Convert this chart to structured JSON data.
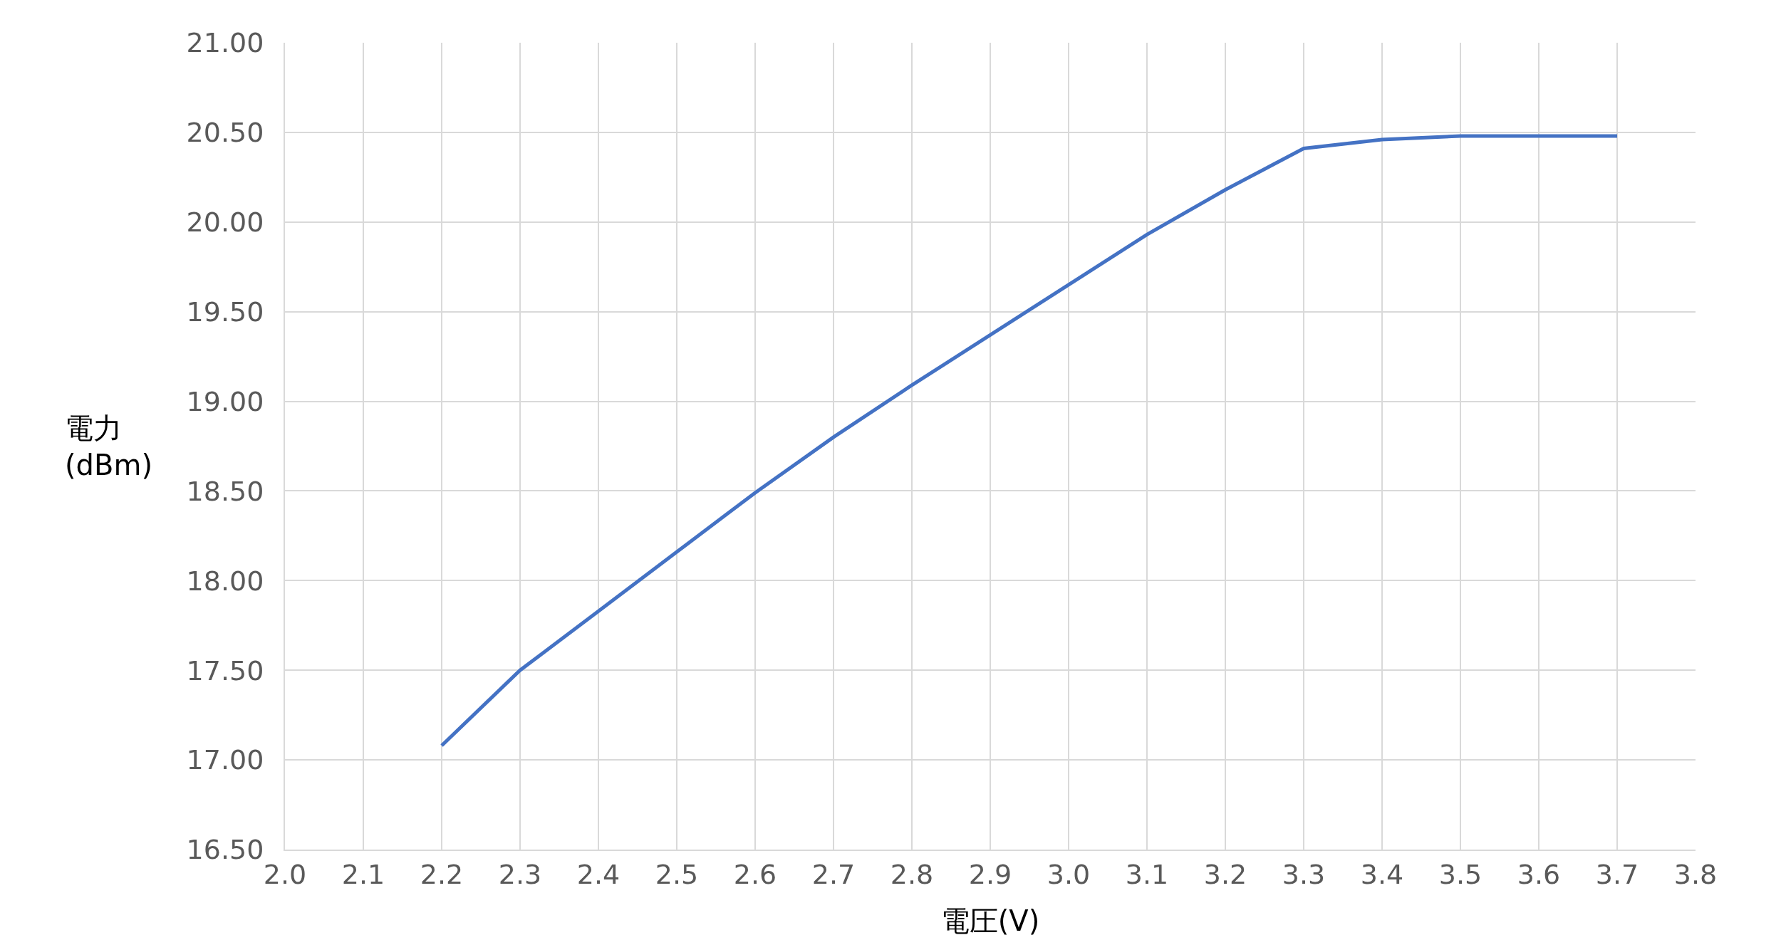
{
  "chart_data": {
    "type": "line",
    "xlabel": "電圧(V)",
    "ylabel": "電力\n(dBm)",
    "x": [
      2.2,
      2.3,
      2.4,
      2.5,
      2.6,
      2.7,
      2.8,
      2.9,
      3.0,
      3.1,
      3.2,
      3.3,
      3.4,
      3.5,
      3.6,
      3.7
    ],
    "series": [
      {
        "color": "#4472c4",
        "values": [
          17.08,
          17.5,
          17.83,
          18.16,
          18.49,
          18.8,
          19.09,
          19.37,
          19.65,
          19.93,
          20.18,
          20.41,
          20.46,
          20.48,
          20.48,
          20.48
        ]
      }
    ],
    "xlim": [
      2.0,
      3.8
    ],
    "xticks": [
      {
        "value": 2.0,
        "label": "2.0"
      },
      2.1,
      2.2,
      2.3,
      2.4,
      2.5,
      2.6,
      2.7,
      2.8,
      2.9,
      {
        "value": 3.0,
        "label": "3.0"
      },
      3.1,
      3.2,
      3.3,
      3.4,
      3.5,
      3.6,
      3.7,
      3.8
    ],
    "ylim": [
      16.5,
      21.0
    ],
    "yticks": [
      {
        "value": 16.5,
        "label": "16.50"
      },
      {
        "value": 17,
        "label": "17.00"
      },
      {
        "value": 17.5,
        "label": "17.50"
      },
      {
        "value": 18,
        "label": "18.00"
      },
      {
        "value": 18.5,
        "label": "18.50"
      },
      {
        "value": 19,
        "label": "19.00"
      },
      {
        "value": 19.5,
        "label": "19.50"
      },
      {
        "value": 20,
        "label": "20.00"
      },
      {
        "value": 20.5,
        "label": "20.50"
      },
      {
        "value": 21,
        "label": "21.00"
      }
    ],
    "grid": true,
    "marker": "none",
    "line_style": "solid"
  }
}
